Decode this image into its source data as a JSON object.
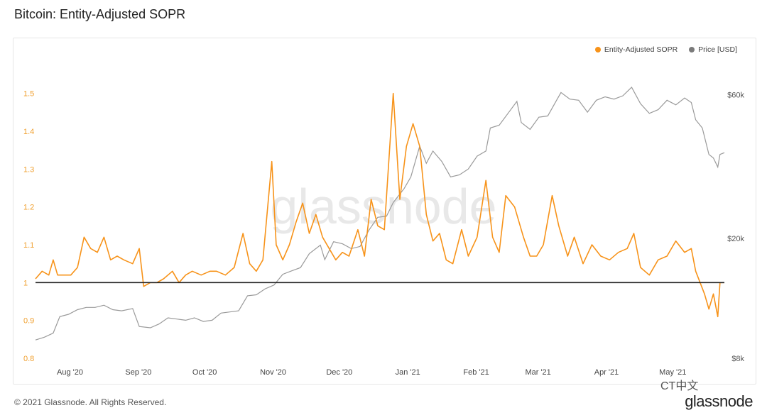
{
  "title": "Bitcoin: Entity-Adjusted SOPR",
  "footer": "© 2021 Glassnode. All Rights Reserved.",
  "brand": "glassnode",
  "watermark": "glassnode",
  "wechat_label": "CT中文",
  "colors": {
    "sopr": "#f7931a",
    "price": "#9a9a9a",
    "baseline": "#222222",
    "left_axis": "#f0a030"
  },
  "chart_data": {
    "type": "line",
    "title": "Bitcoin: Entity-Adjusted SOPR",
    "legend": [
      "Entity-Adjusted SOPR",
      "Price [USD]"
    ],
    "legend_position": "top-right",
    "x_ticks": [
      "Aug '20",
      "Sep '20",
      "Oct '20",
      "Nov '20",
      "Dec '20",
      "Jan '21",
      "Feb '21",
      "Mar '21",
      "Apr '21",
      "May '21"
    ],
    "x_range": [
      "2020-07-18",
      "2021-05-26"
    ],
    "y_left": {
      "range": [
        0.8,
        1.55
      ],
      "ticks": [
        "0.8",
        "0.9",
        "1",
        "1.1",
        "1.2",
        "1.3",
        "1.4",
        "1.5"
      ]
    },
    "y_right": {
      "scale": "log",
      "range": [
        8000,
        70000
      ],
      "ticks": [
        "$8k",
        "$20k",
        "$60k"
      ]
    },
    "reference_line": {
      "axis": "left",
      "value": 1.0
    },
    "series": [
      {
        "name": "Entity-Adjusted SOPR",
        "axis": "left",
        "points": [
          [
            "2020-07-18",
            1.01
          ],
          [
            "2020-07-21",
            1.03
          ],
          [
            "2020-07-24",
            1.02
          ],
          [
            "2020-07-26",
            1.06
          ],
          [
            "2020-07-28",
            1.02
          ],
          [
            "2020-07-31",
            1.02
          ],
          [
            "2020-08-03",
            1.02
          ],
          [
            "2020-08-06",
            1.04
          ],
          [
            "2020-08-09",
            1.12
          ],
          [
            "2020-08-12",
            1.09
          ],
          [
            "2020-08-15",
            1.08
          ],
          [
            "2020-08-18",
            1.12
          ],
          [
            "2020-08-21",
            1.06
          ],
          [
            "2020-08-24",
            1.07
          ],
          [
            "2020-08-27",
            1.06
          ],
          [
            "2020-08-31",
            1.05
          ],
          [
            "2020-09-03",
            1.09
          ],
          [
            "2020-09-05",
            0.99
          ],
          [
            "2020-09-08",
            1.0
          ],
          [
            "2020-09-11",
            1.0
          ],
          [
            "2020-09-14",
            1.01
          ],
          [
            "2020-09-18",
            1.03
          ],
          [
            "2020-09-21",
            1.0
          ],
          [
            "2020-09-24",
            1.02
          ],
          [
            "2020-09-27",
            1.03
          ],
          [
            "2020-10-01",
            1.02
          ],
          [
            "2020-10-05",
            1.03
          ],
          [
            "2020-10-08",
            1.03
          ],
          [
            "2020-10-12",
            1.02
          ],
          [
            "2020-10-16",
            1.04
          ],
          [
            "2020-10-20",
            1.13
          ],
          [
            "2020-10-23",
            1.05
          ],
          [
            "2020-10-26",
            1.03
          ],
          [
            "2020-10-29",
            1.06
          ],
          [
            "2020-11-02",
            1.32
          ],
          [
            "2020-11-04",
            1.1
          ],
          [
            "2020-11-07",
            1.06
          ],
          [
            "2020-11-10",
            1.1
          ],
          [
            "2020-11-13",
            1.16
          ],
          [
            "2020-11-16",
            1.21
          ],
          [
            "2020-11-19",
            1.13
          ],
          [
            "2020-11-22",
            1.18
          ],
          [
            "2020-11-25",
            1.12
          ],
          [
            "2020-11-28",
            1.09
          ],
          [
            "2020-12-01",
            1.06
          ],
          [
            "2020-12-04",
            1.08
          ],
          [
            "2020-12-07",
            1.07
          ],
          [
            "2020-12-11",
            1.14
          ],
          [
            "2020-12-14",
            1.07
          ],
          [
            "2020-12-17",
            1.22
          ],
          [
            "2020-12-20",
            1.15
          ],
          [
            "2020-12-23",
            1.14
          ],
          [
            "2020-12-27",
            1.5
          ],
          [
            "2020-12-30",
            1.22
          ],
          [
            "2021-01-02",
            1.36
          ],
          [
            "2021-01-05",
            1.42
          ],
          [
            "2021-01-08",
            1.36
          ],
          [
            "2021-01-11",
            1.18
          ],
          [
            "2021-01-14",
            1.11
          ],
          [
            "2021-01-17",
            1.13
          ],
          [
            "2021-01-20",
            1.06
          ],
          [
            "2021-01-23",
            1.05
          ],
          [
            "2021-01-27",
            1.14
          ],
          [
            "2021-01-30",
            1.07
          ],
          [
            "2021-02-03",
            1.12
          ],
          [
            "2021-02-07",
            1.27
          ],
          [
            "2021-02-10",
            1.12
          ],
          [
            "2021-02-13",
            1.08
          ],
          [
            "2021-02-16",
            1.23
          ],
          [
            "2021-02-20",
            1.2
          ],
          [
            "2021-02-24",
            1.12
          ],
          [
            "2021-02-27",
            1.07
          ],
          [
            "2021-03-02",
            1.07
          ],
          [
            "2021-03-05",
            1.1
          ],
          [
            "2021-03-09",
            1.23
          ],
          [
            "2021-03-12",
            1.15
          ],
          [
            "2021-03-16",
            1.07
          ],
          [
            "2021-03-19",
            1.12
          ],
          [
            "2021-03-23",
            1.05
          ],
          [
            "2021-03-27",
            1.1
          ],
          [
            "2021-03-31",
            1.07
          ],
          [
            "2021-04-04",
            1.06
          ],
          [
            "2021-04-08",
            1.08
          ],
          [
            "2021-04-12",
            1.09
          ],
          [
            "2021-04-15",
            1.13
          ],
          [
            "2021-04-18",
            1.04
          ],
          [
            "2021-04-22",
            1.02
          ],
          [
            "2021-04-26",
            1.06
          ],
          [
            "2021-04-30",
            1.07
          ],
          [
            "2021-05-04",
            1.11
          ],
          [
            "2021-05-08",
            1.08
          ],
          [
            "2021-05-11",
            1.09
          ],
          [
            "2021-05-13",
            1.03
          ],
          [
            "2021-05-15",
            1.0
          ],
          [
            "2021-05-17",
            0.97
          ],
          [
            "2021-05-19",
            0.93
          ],
          [
            "2021-05-21",
            0.97
          ],
          [
            "2021-05-23",
            0.91
          ],
          [
            "2021-05-24",
            1.0
          ],
          [
            "2021-05-26",
            1.0
          ]
        ]
      },
      {
        "name": "Price [USD]",
        "axis": "right",
        "points": [
          [
            "2020-07-18",
            9200
          ],
          [
            "2020-07-22",
            9400
          ],
          [
            "2020-07-26",
            9700
          ],
          [
            "2020-07-29",
            11000
          ],
          [
            "2020-08-02",
            11200
          ],
          [
            "2020-08-06",
            11600
          ],
          [
            "2020-08-10",
            11800
          ],
          [
            "2020-08-14",
            11800
          ],
          [
            "2020-08-18",
            12000
          ],
          [
            "2020-08-22",
            11600
          ],
          [
            "2020-08-26",
            11500
          ],
          [
            "2020-08-31",
            11700
          ],
          [
            "2020-09-03",
            10200
          ],
          [
            "2020-09-08",
            10100
          ],
          [
            "2020-09-12",
            10400
          ],
          [
            "2020-09-16",
            10900
          ],
          [
            "2020-09-20",
            10800
          ],
          [
            "2020-09-24",
            10700
          ],
          [
            "2020-09-28",
            10900
          ],
          [
            "2020-10-02",
            10600
          ],
          [
            "2020-10-06",
            10700
          ],
          [
            "2020-10-10",
            11300
          ],
          [
            "2020-10-14",
            11400
          ],
          [
            "2020-10-18",
            11500
          ],
          [
            "2020-10-22",
            12900
          ],
          [
            "2020-10-26",
            13000
          ],
          [
            "2020-10-30",
            13600
          ],
          [
            "2020-11-03",
            14000
          ],
          [
            "2020-11-07",
            15200
          ],
          [
            "2020-11-11",
            15600
          ],
          [
            "2020-11-15",
            16000
          ],
          [
            "2020-11-19",
            17800
          ],
          [
            "2020-11-24",
            19000
          ],
          [
            "2020-11-26",
            17000
          ],
          [
            "2020-11-30",
            19500
          ],
          [
            "2020-12-04",
            19200
          ],
          [
            "2020-12-08",
            18500
          ],
          [
            "2020-12-12",
            18800
          ],
          [
            "2020-12-16",
            21300
          ],
          [
            "2020-12-20",
            23500
          ],
          [
            "2020-12-24",
            23700
          ],
          [
            "2020-12-27",
            26300
          ],
          [
            "2021-01-01",
            29300
          ],
          [
            "2021-01-04",
            32000
          ],
          [
            "2021-01-08",
            40500
          ],
          [
            "2021-01-11",
            35500
          ],
          [
            "2021-01-14",
            39000
          ],
          [
            "2021-01-18",
            36000
          ],
          [
            "2021-01-22",
            32000
          ],
          [
            "2021-01-26",
            32500
          ],
          [
            "2021-01-30",
            34000
          ],
          [
            "2021-02-03",
            37500
          ],
          [
            "2021-02-07",
            39000
          ],
          [
            "2021-02-09",
            46500
          ],
          [
            "2021-02-13",
            47500
          ],
          [
            "2021-02-17",
            52000
          ],
          [
            "2021-02-21",
            57000
          ],
          [
            "2021-02-23",
            48500
          ],
          [
            "2021-02-27",
            46000
          ],
          [
            "2021-03-03",
            50500
          ],
          [
            "2021-03-07",
            51000
          ],
          [
            "2021-03-11",
            57500
          ],
          [
            "2021-03-13",
            61000
          ],
          [
            "2021-03-17",
            58000
          ],
          [
            "2021-03-21",
            57500
          ],
          [
            "2021-03-25",
            52500
          ],
          [
            "2021-03-29",
            57500
          ],
          [
            "2021-04-02",
            59000
          ],
          [
            "2021-04-06",
            58000
          ],
          [
            "2021-04-10",
            59500
          ],
          [
            "2021-04-14",
            63500
          ],
          [
            "2021-04-18",
            56000
          ],
          [
            "2021-04-22",
            52000
          ],
          [
            "2021-04-26",
            53500
          ],
          [
            "2021-04-30",
            57500
          ],
          [
            "2021-05-04",
            55500
          ],
          [
            "2021-05-08",
            58500
          ],
          [
            "2021-05-11",
            56500
          ],
          [
            "2021-05-13",
            49500
          ],
          [
            "2021-05-16",
            46500
          ],
          [
            "2021-05-19",
            38000
          ],
          [
            "2021-05-21",
            37000
          ],
          [
            "2021-05-23",
            34500
          ],
          [
            "2021-05-24",
            38000
          ],
          [
            "2021-05-26",
            38500
          ]
        ]
      }
    ]
  }
}
